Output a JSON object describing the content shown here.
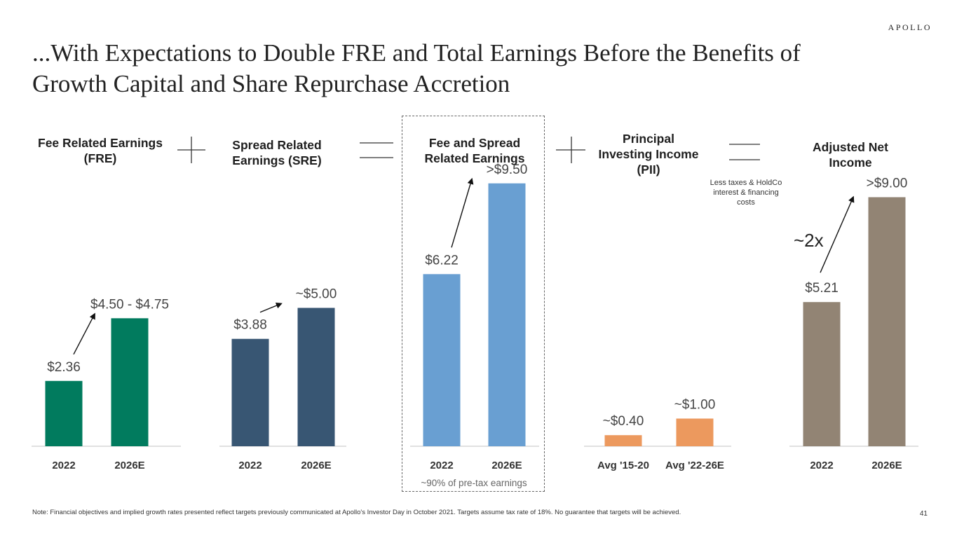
{
  "slide": {
    "title": "...With Expectations to Double FRE and Total Earnings Before the Benefits of Growth Capital and Share Repurchase Accretion",
    "logo": "APOLLO",
    "footnote": "Note: Financial objectives and implied growth rates presented reflect targets previously communicated at Apollo's Investor Day in October 2021. Targets assume tax rate of 18%. No guarantee that targets will be achieved.",
    "page_number": "41",
    "operator_note": "Less taxes & HoldCo interest & financing costs",
    "growth_label": "~2x",
    "fsre_note": "~90% of pre-tax earnings"
  },
  "chart_data": [
    {
      "type": "bar",
      "title": "Fee Related Earnings (FRE)",
      "categories": [
        "2022",
        "2026E"
      ],
      "values": [
        2.36,
        4.625
      ],
      "data_labels": [
        "$2.36",
        "$4.50 - $4.75"
      ],
      "color": "#017B5E"
    },
    {
      "type": "bar",
      "title": "Spread Related Earnings (SRE)",
      "categories": [
        "2022",
        "2026E"
      ],
      "values": [
        3.88,
        5.0
      ],
      "data_labels": [
        "$3.88",
        "~$5.00"
      ],
      "color": "#385673"
    },
    {
      "type": "bar",
      "title": "Fee and Spread Related Earnings",
      "categories": [
        "2022",
        "2026E"
      ],
      "values": [
        6.22,
        9.5
      ],
      "data_labels": [
        "$6.22",
        ">$9.50"
      ],
      "color": "#699FD2"
    },
    {
      "type": "bar",
      "title": "Principal Investing Income (PII)",
      "categories": [
        "Avg '15-20",
        "Avg '22-26E"
      ],
      "values": [
        0.4,
        1.0
      ],
      "data_labels": [
        "~$0.40",
        "~$1.00"
      ],
      "color": "#EC995E"
    },
    {
      "type": "bar",
      "title": "Adjusted Net Income",
      "categories": [
        "2022",
        "2026E"
      ],
      "values": [
        5.21,
        9.0
      ],
      "data_labels": [
        "$5.21",
        ">$9.00"
      ],
      "color": "#928474"
    }
  ]
}
